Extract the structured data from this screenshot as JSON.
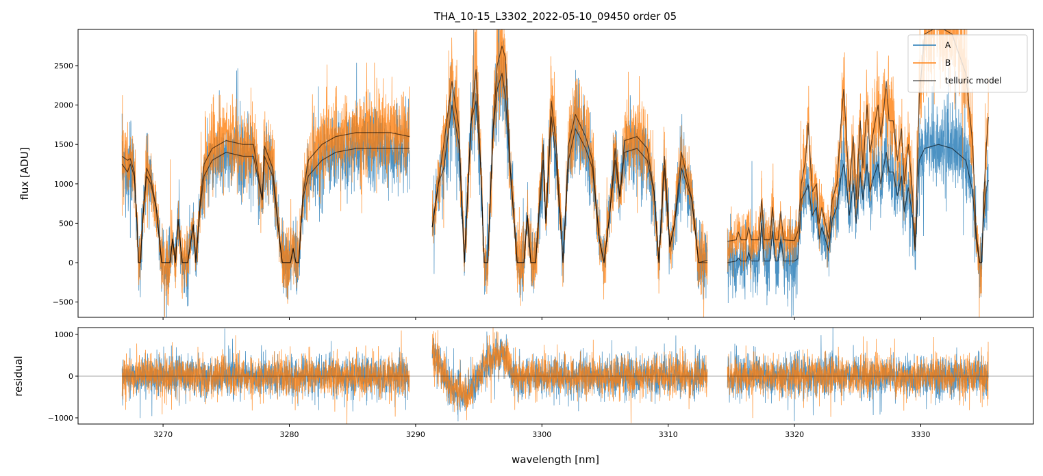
{
  "chart_data": [
    {
      "panel": "spectrum",
      "type": "line",
      "title": "THA_10-15_L3302_2022-05-10_09450  order 05",
      "xlabel": "",
      "ylabel": "flux [ADU]",
      "xlim": [
        3263.27,
        3338.92
      ],
      "ylim": [
        -694,
        2960
      ],
      "xticks": [
        3270,
        3280,
        3290,
        3300,
        3310,
        3320,
        3330
      ],
      "yticks": [
        -500,
        0,
        500,
        1000,
        1500,
        2000,
        2500
      ],
      "ytick_labels": [
        "−500",
        "0",
        "500",
        "1000",
        "1500",
        "2000",
        "2500"
      ],
      "grid": false,
      "legend": {
        "placement": "top-right",
        "entries": [
          "A",
          "B",
          "telluric model"
        ]
      },
      "colors": {
        "A": "#1f77b4",
        "B": "#ff7f0e",
        "telluric model": "#000000"
      },
      "segments": [
        [
          3266.75,
          3289.52
        ],
        [
          3291.31,
          3313.11
        ],
        [
          3314.69,
          3335.36
        ]
      ],
      "series": [
        {
          "name": "A",
          "kind": "observed (noisy) spectrum around model A"
        },
        {
          "name": "B",
          "kind": "observed (noisy) spectrum around model B"
        },
        {
          "name": "telluric model",
          "columns": [
            "wavelength",
            "A",
            "B"
          ],
          "points": [
            [
              [
                3266.75,
                1250,
                1350
              ],
              [
                3267.18,
                1150,
                1300
              ],
              [
                3267.4,
                1250,
                1320
              ],
              [
                3267.72,
                1100,
                1150
              ],
              [
                3267.94,
                500,
                500
              ],
              [
                3268.05,
                0,
                0
              ],
              [
                3268.21,
                0,
                0
              ],
              [
                3268.37,
                500,
                500
              ],
              [
                3268.7,
                1100,
                1200
              ],
              [
                3269.02,
                1000,
                1080
              ],
              [
                3269.46,
                700,
                700
              ],
              [
                3269.89,
                0,
                0
              ],
              [
                3270.54,
                0,
                0
              ],
              [
                3270.76,
                300,
                300
              ],
              [
                3270.98,
                0,
                0
              ],
              [
                3271.19,
                550,
                550
              ],
              [
                3271.52,
                0,
                0
              ],
              [
                3271.95,
                0,
                0
              ],
              [
                3272.39,
                480,
                480
              ],
              [
                3272.6,
                0,
                0
              ],
              [
                3272.93,
                700,
                750
              ],
              [
                3273.25,
                1100,
                1250
              ],
              [
                3273.9,
                1300,
                1450
              ],
              [
                3274.99,
                1400,
                1550
              ],
              [
                3276.34,
                1350,
                1500
              ],
              [
                3277.16,
                1350,
                1500
              ],
              [
                3277.86,
                800,
                800
              ],
              [
                3278.03,
                1350,
                1480
              ],
              [
                3278.68,
                1100,
                1200
              ],
              [
                3279.22,
                300,
                300
              ],
              [
                3279.44,
                0,
                0
              ],
              [
                3280.09,
                0,
                0
              ],
              [
                3280.3,
                180,
                180
              ],
              [
                3280.52,
                0,
                0
              ],
              [
                3280.74,
                0,
                0
              ],
              [
                3281.06,
                800,
                850
              ],
              [
                3281.5,
                1100,
                1300
              ],
              [
                3282.58,
                1300,
                1500
              ],
              [
                3283.67,
                1400,
                1600
              ],
              [
                3285.29,
                1450,
                1650
              ],
              [
                3286.65,
                1450,
                1650
              ],
              [
                3288.0,
                1450,
                1650
              ],
              [
                3289.52,
                1450,
                1600
              ]
            ],
            [
              [
                3291.31,
                450,
                450
              ],
              [
                3291.8,
                1000,
                1000
              ],
              [
                3292.23,
                1200,
                1500
              ],
              [
                3292.88,
                2000,
                2300
              ],
              [
                3293.43,
                1500,
                1700
              ],
              [
                3293.86,
                0,
                0
              ],
              [
                3294.4,
                1800,
                1800
              ],
              [
                3294.78,
                2050,
                2450
              ],
              [
                3295.16,
                1200,
                1200
              ],
              [
                3295.43,
                0,
                0
              ],
              [
                3295.71,
                0,
                0
              ],
              [
                3296.14,
                1700,
                1700
              ],
              [
                3296.46,
                2200,
                2500
              ],
              [
                3296.84,
                2400,
                2750
              ],
              [
                3297.11,
                2100,
                2600
              ],
              [
                3297.49,
                1200,
                1200
              ],
              [
                3298.04,
                0,
                0
              ],
              [
                3298.58,
                0,
                0
              ],
              [
                3298.85,
                600,
                600
              ],
              [
                3299.12,
                0,
                0
              ],
              [
                3299.5,
                0,
                0
              ],
              [
                3300.1,
                1300,
                1500
              ],
              [
                3300.31,
                500,
                500
              ],
              [
                3300.75,
                1850,
                2050
              ],
              [
                3301.13,
                1300,
                1500
              ],
              [
                3301.67,
                0,
                0
              ],
              [
                3302.11,
                1300,
                1500
              ],
              [
                3302.65,
                1700,
                1880
              ],
              [
                3303.46,
                1450,
                1600
              ],
              [
                3304.0,
                1200,
                1300
              ],
              [
                3304.54,
                300,
                300
              ],
              [
                3304.92,
                0,
                0
              ],
              [
                3305.36,
                600,
                600
              ],
              [
                3305.79,
                1300,
                1450
              ],
              [
                3306.17,
                840,
                840
              ],
              [
                3306.55,
                1400,
                1550
              ],
              [
                3307.53,
                1450,
                1600
              ],
              [
                3308.34,
                1300,
                1450
              ],
              [
                3308.88,
                900,
                900
              ],
              [
                3309.26,
                0,
                0
              ],
              [
                3309.7,
                1200,
                1350
              ],
              [
                3310.13,
                200,
                200
              ],
              [
                3310.51,
                500,
                500
              ],
              [
                3311.05,
                1200,
                1400
              ],
              [
                3311.87,
                800,
                800
              ],
              [
                3312.41,
                0,
                0
              ],
              [
                3313.11,
                0,
                30
              ]
            ],
            [
              [
                3314.69,
                0,
                270
              ],
              [
                3315.39,
                20,
                290
              ],
              [
                3315.55,
                60,
                390
              ],
              [
                3315.77,
                20,
                290
              ],
              [
                3316.2,
                20,
                290
              ],
              [
                3316.37,
                130,
                450
              ],
              [
                3316.58,
                20,
                290
              ],
              [
                3317.18,
                20,
                290
              ],
              [
                3317.4,
                500,
                800
              ],
              [
                3317.61,
                20,
                290
              ],
              [
                3318.05,
                20,
                290
              ],
              [
                3318.26,
                400,
                700
              ],
              [
                3318.48,
                20,
                290
              ],
              [
                3318.7,
                20,
                290
              ],
              [
                3318.92,
                300,
                650
              ],
              [
                3319.13,
                20,
                290
              ],
              [
                3320.0,
                20,
                280
              ],
              [
                3320.27,
                50,
                400
              ],
              [
                3320.54,
                800,
                1000
              ],
              [
                3320.87,
                900,
                1300
              ],
              [
                3321.08,
                990,
                1770
              ],
              [
                3321.41,
                600,
                900
              ],
              [
                3321.74,
                700,
                1000
              ],
              [
                3321.95,
                300,
                500
              ],
              [
                3322.17,
                450,
                700
              ],
              [
                3322.71,
                150,
                300
              ],
              [
                3322.98,
                550,
                800
              ],
              [
                3323.36,
                700,
                1000
              ],
              [
                3323.69,
                1100,
                1800
              ],
              [
                3323.9,
                1250,
                2200
              ],
              [
                3324.12,
                1000,
                1600
              ],
              [
                3324.34,
                600,
                900
              ],
              [
                3324.66,
                1000,
                1600
              ],
              [
                3324.88,
                500,
                800
              ],
              [
                3325.21,
                1150,
                1800
              ],
              [
                3325.42,
                800,
                1200
              ],
              [
                3325.75,
                1250,
                2000
              ],
              [
                3325.97,
                900,
                1400
              ],
              [
                3326.29,
                1100,
                1700
              ],
              [
                3326.62,
                1250,
                2000
              ],
              [
                3326.83,
                1000,
                1600
              ],
              [
                3327.05,
                1200,
                1900
              ],
              [
                3327.27,
                1400,
                2300
              ],
              [
                3327.49,
                1150,
                1800
              ],
              [
                3327.82,
                1150,
                1800
              ],
              [
                3328.15,
                850,
                1300
              ],
              [
                3328.47,
                1100,
                1700
              ],
              [
                3328.69,
                650,
                1000
              ],
              [
                3329.02,
                950,
                1500
              ],
              [
                3329.34,
                600,
                900
              ],
              [
                3329.56,
                150,
                200
              ],
              [
                3329.88,
                1300,
                2100
              ],
              [
                3330.31,
                1450,
                2900
              ],
              [
                3331.4,
                1500,
                3000
              ],
              [
                3332.48,
                1450,
                2900
              ],
              [
                3333.57,
                1300,
                2400
              ],
              [
                3334.11,
                900,
                1500
              ],
              [
                3334.38,
                300,
                400
              ],
              [
                3334.66,
                0,
                0
              ],
              [
                3334.82,
                0,
                0
              ],
              [
                3334.98,
                600,
                800
              ],
              [
                3335.2,
                950,
                1500
              ],
              [
                3335.36,
                1050,
                1850
              ]
            ]
          ]
        }
      ]
    },
    {
      "panel": "residual",
      "type": "line",
      "xlabel": "wavelength [nm]",
      "ylabel": "residual",
      "xlim": [
        3263.27,
        3338.92
      ],
      "ylim": [
        -1148,
        1164
      ],
      "xticks": [
        3270,
        3280,
        3290,
        3300,
        3310,
        3320,
        3330
      ],
      "xtick_labels": [
        "3270",
        "3280",
        "3290",
        "3300",
        "3310",
        "3320",
        "3330"
      ],
      "yticks": [
        -1000,
        0,
        1000
      ],
      "ytick_labels": [
        "−1000",
        "0",
        "1000"
      ],
      "zero_line": true,
      "series": [
        {
          "name": "A",
          "kind": "residual A"
        },
        {
          "name": "B",
          "kind": "residual B"
        }
      ],
      "residual_trend": [
        [
          3291.2,
          600
        ],
        [
          3291.8,
          400
        ],
        [
          3292.3,
          0
        ],
        [
          3293.0,
          -300
        ],
        [
          3294.0,
          -500
        ],
        [
          3294.8,
          -200
        ],
        [
          3295.3,
          200
        ],
        [
          3296.0,
          400
        ],
        [
          3296.8,
          600
        ],
        [
          3297.3,
          300
        ],
        [
          3297.8,
          0
        ]
      ]
    }
  ]
}
